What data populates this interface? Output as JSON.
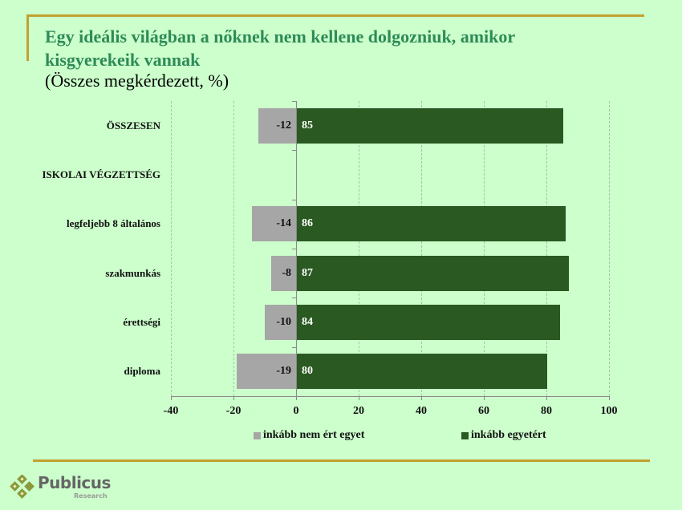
{
  "title": "Egy ideális világban a nőknek nem kellene dolgozniuk, amikor kisgyerekeik vannak",
  "subtitle": "(Összes megkérdezett, %)",
  "colors": {
    "background": "#ccffcc",
    "title": "#2e8b57",
    "accent_gold": "#c2a12e",
    "disagree": "#a6a6a6",
    "agree": "#2a5a22"
  },
  "legend": {
    "disagree_label": "inkább nem ért egyet",
    "agree_label": "inkább egyetért"
  },
  "logo": {
    "name": "Publicus",
    "sub": "Research",
    "icon": "four-diamonds-icon"
  },
  "chart_data": {
    "type": "bar",
    "orientation": "horizontal",
    "stacked": "diverging",
    "title": "Egy ideális világban a nőknek nem kellene dolgozniuk, amikor kisgyerekeik vannak",
    "subtitle": "(Összes megkérdezett, %)",
    "xlabel": "",
    "ylabel": "",
    "xlim": [
      -40,
      100
    ],
    "xticks": [
      -40,
      -20,
      0,
      20,
      40,
      60,
      80,
      100
    ],
    "grid": "vertical dashed",
    "legend_position": "bottom",
    "categories": [
      "ÖSSZESEN",
      "ISKOLAI VÉGZETTSÉG",
      "legfeljebb 8 általános",
      "szakmunkás",
      "érettségi",
      "diploma"
    ],
    "series": [
      {
        "name": "inkább nem ért egyet",
        "values": [
          -12,
          null,
          -14,
          -8,
          -10,
          -19
        ]
      },
      {
        "name": "inkább egyetért",
        "values": [
          85,
          null,
          86,
          87,
          84,
          80
        ]
      }
    ]
  }
}
